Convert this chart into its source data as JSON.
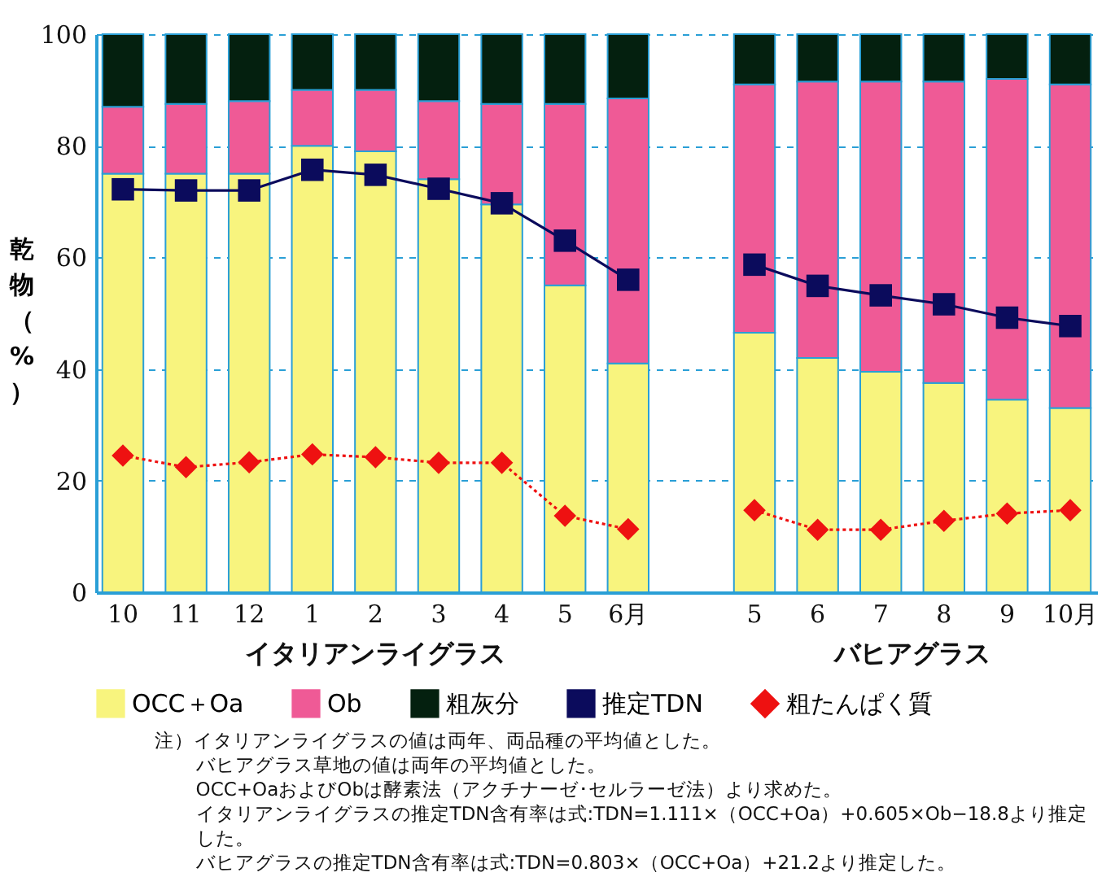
{
  "chart_data": {
    "type": "bar",
    "stacked": true,
    "categories": [
      "10",
      "11",
      "12",
      "1",
      "2",
      "3",
      "4",
      "5",
      "6月",
      null,
      "5",
      "6",
      "7",
      "8",
      "9",
      "10月"
    ],
    "ylabel": "乾物（%）",
    "series": [
      {
        "name": "OCC＋Oa",
        "color": "#f8f47e",
        "values": [
          75,
          75,
          75,
          80,
          79,
          74,
          69.5,
          55,
          41,
          null,
          46.5,
          42,
          39.5,
          37.5,
          34.5,
          33
        ]
      },
      {
        "name": "Ob",
        "color": "#ef5a96",
        "values": [
          12,
          12.5,
          13,
          10,
          11,
          14,
          18,
          32.5,
          47.5,
          null,
          44.5,
          49.5,
          52,
          54,
          57.5,
          58
        ]
      },
      {
        "name": "粗灰分",
        "color": "#04200f",
        "values": [
          13,
          12.5,
          12,
          10,
          10,
          12,
          12.5,
          12.5,
          11.5,
          null,
          9,
          8.5,
          8.5,
          8.5,
          8,
          9
        ]
      },
      {
        "name": "推定TDN",
        "type": "line",
        "color": "#0b0b5c",
        "marker": "square",
        "line_style": "solid",
        "values": [
          72.2,
          72,
          72,
          75.7,
          74.8,
          72.3,
          69.7,
          63,
          56,
          null,
          58.7,
          54.9,
          53.2,
          51.6,
          49.2,
          47.7
        ]
      },
      {
        "name": "粗たんぱく質",
        "type": "line",
        "color": "#ee1111",
        "marker": "diamond",
        "line_style": "dotted",
        "values": [
          24.5,
          22.4,
          23.3,
          24.7,
          24.2,
          23.2,
          23.2,
          13.7,
          11.3,
          null,
          14.7,
          11.2,
          11.2,
          12.8,
          14.1,
          14.7
        ]
      }
    ],
    "ylim": [
      0,
      100
    ],
    "yticks": [
      0,
      20,
      40,
      60,
      80,
      100
    ],
    "grid": "y",
    "legend": "bottom",
    "annotations": [
      "イタリアンライグラス",
      "バヒアグラス",
      "注）イタリアンライグラスの値は両年、両品種の平均値とした。",
      "バヒアグラス草地の値は両年の平均値とした。",
      "OCC+OaおよびObは酵素法（アクチナーゼ･セルラーゼ法）より求めた。",
      "イタリアンライグラスの推定TDN含有率は式:TDN=1.111×（OCC+Oa）+0.605×Ob−18.8より推定した。",
      "バヒアグラスの推定TDN含有率は式:TDN=0.803×（OCC+Oa）+21.2より推定した。"
    ]
  }
}
